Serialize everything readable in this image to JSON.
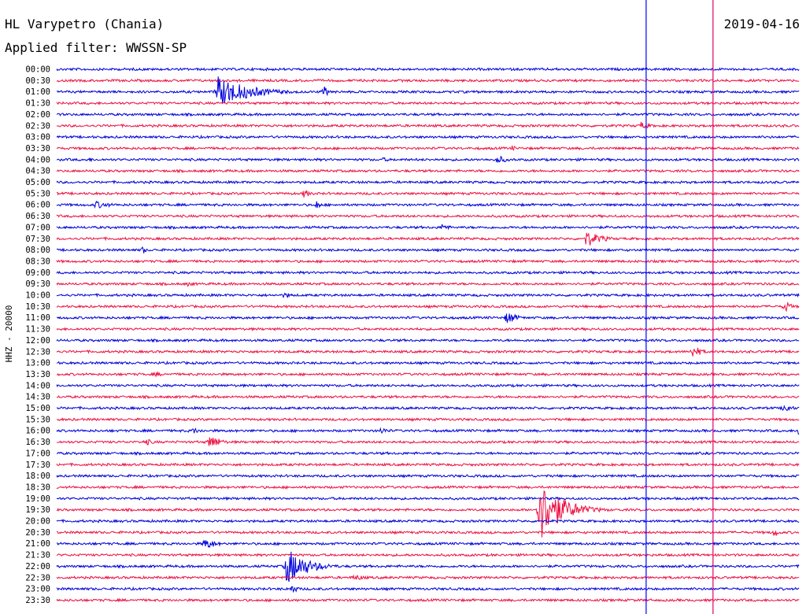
{
  "header": {
    "station": "HL Varypetro (Chania)",
    "filter": "Applied filter: WWSSN-SP",
    "date": "2019-04-16"
  },
  "channel_label": "HHZ - 20000",
  "colors": {
    "blue": "#0000dd",
    "red": "#ee1144",
    "marker_blue": "#0000ff",
    "marker_red": "#dd0066"
  },
  "chart_data": {
    "type": "line",
    "title": "",
    "xlabel": "",
    "ylabel": "HHZ - 20000",
    "row_labels": [
      "00:00",
      "00:30",
      "01:00",
      "01:30",
      "02:00",
      "02:30",
      "03:00",
      "03:30",
      "04:00",
      "04:30",
      "05:00",
      "05:30",
      "06:00",
      "06:30",
      "07:00",
      "07:30",
      "08:00",
      "08:30",
      "09:00",
      "09:30",
      "10:00",
      "10:30",
      "11:00",
      "11:30",
      "12:00",
      "12:30",
      "13:00",
      "13:30",
      "14:00",
      "14:30",
      "15:00",
      "15:30",
      "16:00",
      "16:30",
      "17:00",
      "17:30",
      "18:00",
      "18:30",
      "19:00",
      "19:30",
      "20:00",
      "20:30",
      "21:00",
      "21:30",
      "22:00",
      "22:30",
      "23:00",
      "23:30"
    ],
    "row_minutes": 30,
    "row_colors": [
      "blue",
      "red"
    ],
    "events": [
      {
        "row": "01:00",
        "minute": 6.5,
        "amplitude": 20,
        "duration": 4,
        "color": "blue"
      },
      {
        "row": "01:00",
        "minute": 10.8,
        "amplitude": 7,
        "duration": 0.8,
        "color": "blue"
      },
      {
        "row": "02:30",
        "minute": 23.6,
        "amplitude": 5,
        "duration": 1.2,
        "color": "red"
      },
      {
        "row": "03:30",
        "minute": 18.4,
        "amplitude": 4,
        "duration": 0.5,
        "color": "red"
      },
      {
        "row": "04:00",
        "minute": 1.3,
        "amplitude": 3,
        "duration": 1,
        "color": "blue"
      },
      {
        "row": "04:00",
        "minute": 13.2,
        "amplitude": 3,
        "duration": 1,
        "color": "blue"
      },
      {
        "row": "04:00",
        "minute": 17.8,
        "amplitude": 6,
        "duration": 1.2,
        "color": "blue"
      },
      {
        "row": "05:30",
        "minute": 10.0,
        "amplitude": 6,
        "duration": 0.8,
        "color": "red"
      },
      {
        "row": "06:00",
        "minute": 1.6,
        "amplitude": 5,
        "duration": 2,
        "color": "blue"
      },
      {
        "row": "06:00",
        "minute": 10.5,
        "amplitude": 6,
        "duration": 0.5,
        "color": "blue"
      },
      {
        "row": "07:00",
        "minute": 15.6,
        "amplitude": 6,
        "duration": 0.8,
        "color": "blue"
      },
      {
        "row": "07:30",
        "minute": 21.4,
        "amplitude": 11,
        "duration": 1.8,
        "color": "red"
      },
      {
        "row": "08:00",
        "minute": 3.5,
        "amplitude": 6,
        "duration": 0.3,
        "color": "blue"
      },
      {
        "row": "09:30",
        "minute": 5.3,
        "amplitude": 3,
        "duration": 1.5,
        "color": "red"
      },
      {
        "row": "10:00",
        "minute": 9.2,
        "amplitude": 4,
        "duration": 1.2,
        "color": "blue"
      },
      {
        "row": "10:30",
        "minute": 29.4,
        "amplitude": 8,
        "duration": 0.8,
        "color": "red"
      },
      {
        "row": "11:00",
        "minute": 18.2,
        "amplitude": 9,
        "duration": 1.2,
        "color": "blue"
      },
      {
        "row": "12:30",
        "minute": 25.7,
        "amplitude": 9,
        "duration": 1,
        "color": "red"
      },
      {
        "row": "13:30",
        "minute": 4.0,
        "amplitude": 3,
        "duration": 1.5,
        "color": "red"
      },
      {
        "row": "15:00",
        "minute": 29.4,
        "amplitude": 7,
        "duration": 0.9,
        "color": "blue"
      },
      {
        "row": "16:00",
        "minute": 5.5,
        "amplitude": 4,
        "duration": 1.5,
        "color": "blue"
      },
      {
        "row": "16:00",
        "minute": 13.1,
        "amplitude": 5,
        "duration": 1,
        "color": "blue"
      },
      {
        "row": "16:00",
        "minute": 30.0,
        "amplitude": 10,
        "duration": 1,
        "color": "blue"
      },
      {
        "row": "16:30",
        "minute": 3.6,
        "amplitude": 5,
        "duration": 1,
        "color": "red"
      },
      {
        "row": "16:30",
        "minute": 6.2,
        "amplitude": 10,
        "duration": 1.3,
        "color": "red"
      },
      {
        "row": "19:30",
        "minute": 19.5,
        "amplitude": 40,
        "duration": 2.8,
        "color": "red"
      },
      {
        "row": "19:30",
        "minute": 21.0,
        "amplitude": 8,
        "duration": 1.2,
        "color": "red"
      },
      {
        "row": "20:30",
        "minute": 29.0,
        "amplitude": 6,
        "duration": 0.6,
        "color": "red"
      },
      {
        "row": "21:00",
        "minute": 6.0,
        "amplitude": 8,
        "duration": 1.4,
        "color": "blue"
      },
      {
        "row": "22:00",
        "minute": 9.3,
        "amplitude": 24,
        "duration": 2.5,
        "color": "blue"
      },
      {
        "row": "22:30",
        "minute": 12.0,
        "amplitude": 4,
        "duration": 2,
        "color": "red"
      },
      {
        "row": "23:00",
        "minute": 9.5,
        "amplitude": 6,
        "duration": 0.8,
        "color": "blue"
      }
    ],
    "markers": [
      {
        "minute": 23.8,
        "color": "marker_blue"
      },
      {
        "minute": 26.5,
        "color": "marker_red"
      }
    ],
    "grid": false,
    "legend": "none"
  }
}
